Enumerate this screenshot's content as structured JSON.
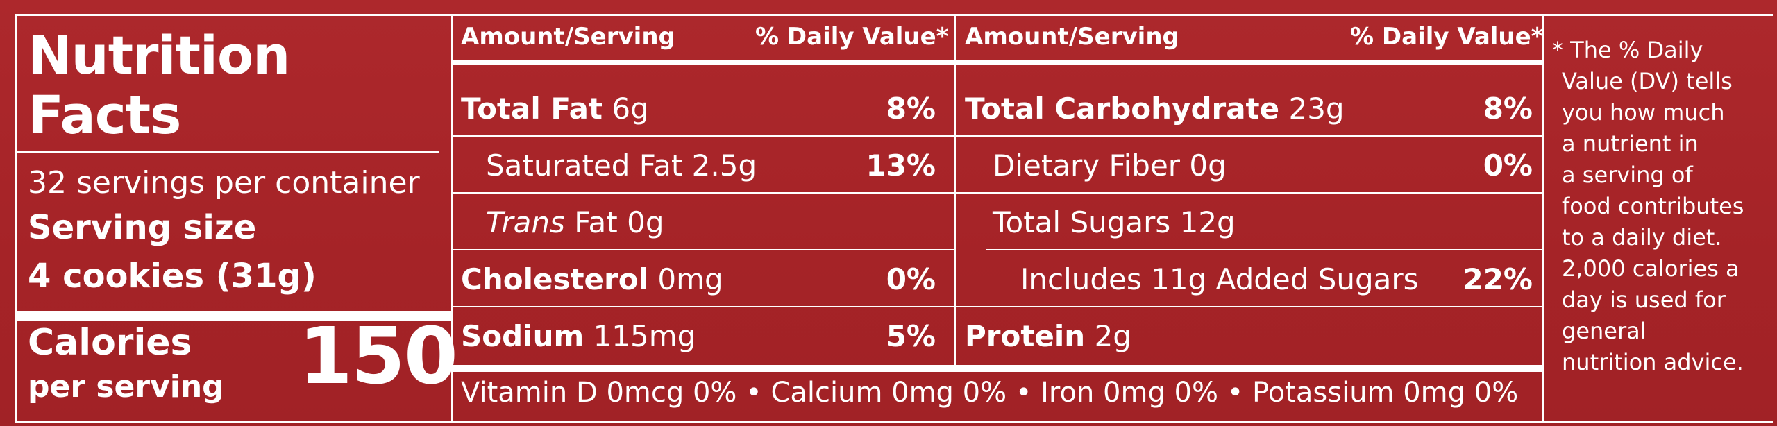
{
  "label": {
    "title_line1": "Nutrition",
    "title_line2": "Facts",
    "servings_per_container": "32 servings per container",
    "serving_size_label": "Serving size",
    "serving_size_value": "4 cookies (31g)",
    "calories_label": "Calories",
    "calories_sublabel": "per serving",
    "calories_value": "150"
  },
  "left_column": {
    "header_amount": "Amount/Serving",
    "header_dv": "% Daily Value*",
    "rows": [
      {
        "name": "Total Fat",
        "amount": " 6g",
        "dv": "8%"
      },
      {
        "name": "Saturated Fat 2.5g",
        "dv": "13%"
      },
      {
        "name_italic": "Trans",
        "name": " Fat 0g",
        "dv": ""
      },
      {
        "name": "Cholesterol",
        "amount": " 0mg",
        "dv": "0%"
      },
      {
        "name": "Sodium",
        "amount": " 115mg",
        "dv": "5%"
      }
    ]
  },
  "right_column": {
    "header_amount": "Amount/Serving",
    "header_dv": "% Daily Value*",
    "rows": [
      {
        "name": "Total Carbohydrate",
        "amount": " 23g",
        "dv": "8%"
      },
      {
        "name": "Dietary Fiber 0g",
        "dv": "0%"
      },
      {
        "name": "Total Sugars 12g",
        "dv": ""
      },
      {
        "name": "Includes 11g Added Sugars",
        "dv": "22%"
      },
      {
        "name": "Protein",
        "amount": " 2g",
        "dv": ""
      }
    ]
  },
  "micronutrients": "Vitamin D 0mcg 0% • Calcium 0mg 0% • Iron 0mg 0% • Potassium 0mg 0%",
  "footnote": {
    "lines": [
      "* The % Daily",
      "Value (DV) tells",
      "you how much",
      "a nutrient in",
      "a serving of",
      "food contributes",
      "to a daily diet.",
      "2,000 calories a",
      "day is used for",
      "general",
      "nutrition advice."
    ]
  }
}
